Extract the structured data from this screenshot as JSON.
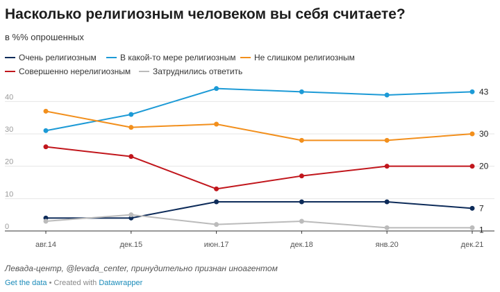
{
  "chart_data": {
    "type": "line",
    "title": "Насколько религиозным человеком вы себя считаете?",
    "subtitle": "в %% опрошенных",
    "categories": [
      "авг.14",
      "дек.15",
      "июн.17",
      "дек.18",
      "янв.20",
      "дек.21"
    ],
    "ylim": [
      0,
      45
    ],
    "yticks": [
      0,
      10,
      20,
      30,
      40
    ],
    "series": [
      {
        "name": "Очень религиозным",
        "color": "#0d2b59",
        "values": [
          4,
          4,
          9,
          9,
          9,
          7
        ],
        "end_label": "7"
      },
      {
        "name": "В какой-то мере религиозным",
        "color": "#1c9ad6",
        "values": [
          31,
          36,
          44,
          43,
          42,
          43
        ],
        "end_label": "43"
      },
      {
        "name": "Не слишком религиозным",
        "color": "#f28f1c",
        "values": [
          37,
          32,
          33,
          28,
          28,
          30
        ],
        "end_label": "30"
      },
      {
        "name": "Совершенно нерелигиозным",
        "color": "#c1161c",
        "values": [
          26,
          23,
          13,
          17,
          20,
          20
        ],
        "end_label": "20"
      },
      {
        "name": "Затруднились ответить",
        "color": "#bbbbbb",
        "values": [
          3,
          5,
          2,
          3,
          1,
          1
        ],
        "end_label": "1"
      }
    ],
    "grid": true,
    "legend_position": "top-left"
  },
  "footer": {
    "source": "Левада-центр, @levada_center, принудительно признан иноагентом",
    "get_data": "Get the data",
    "separator": " • Created with ",
    "datawrapper": "Datawrapper"
  }
}
